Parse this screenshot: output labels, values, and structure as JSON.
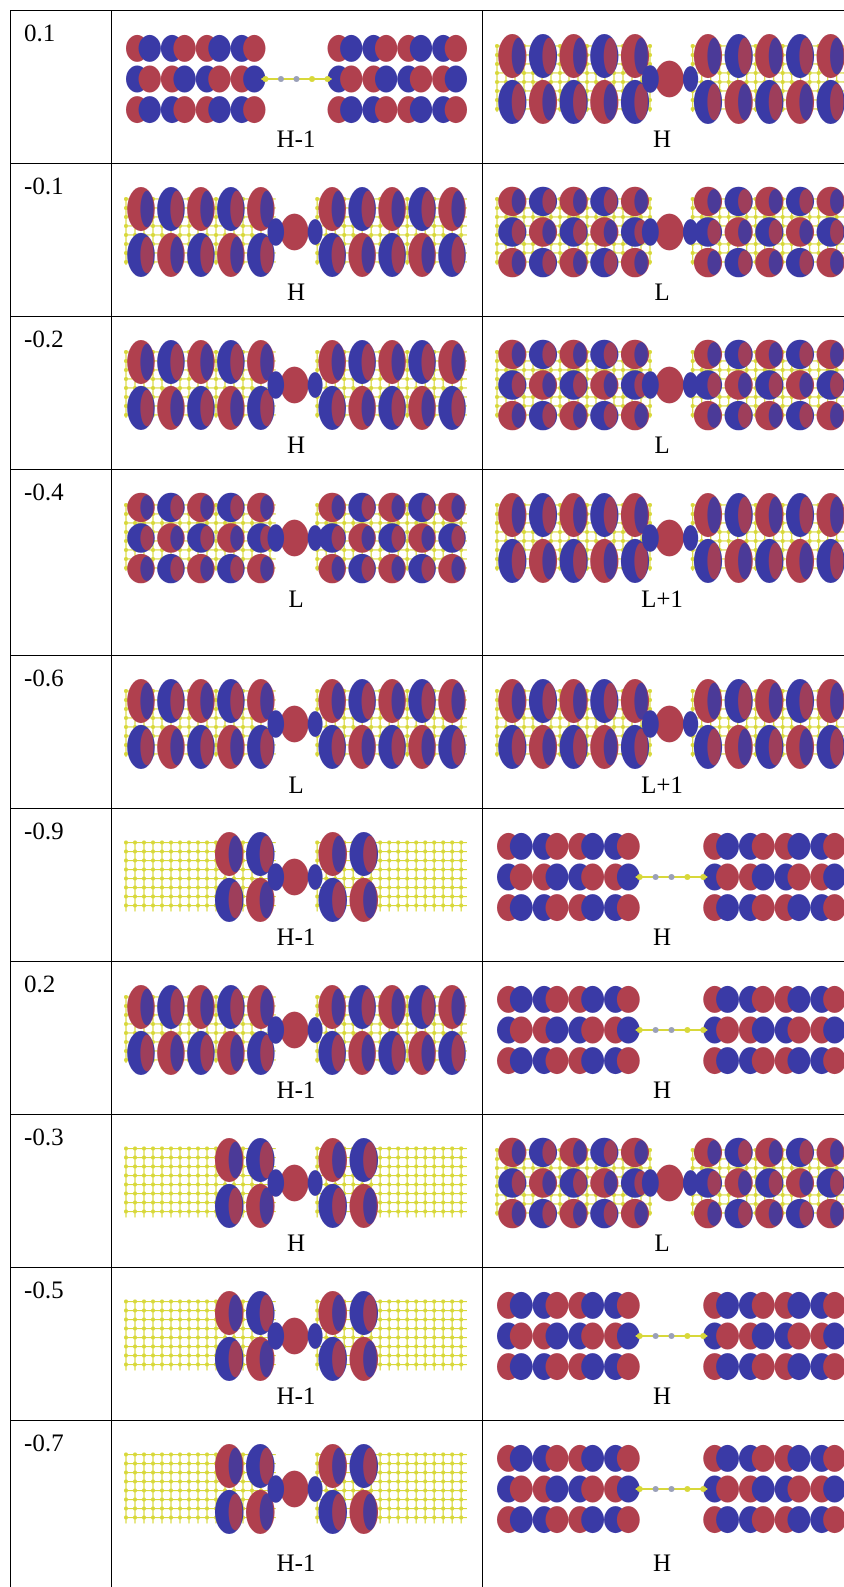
{
  "rows": [
    {
      "value": "0.1",
      "cells": [
        {
          "label": "H-1",
          "style": "px"
        },
        {
          "label": "H",
          "style": "tube"
        }
      ]
    },
    {
      "value": "-0.1",
      "cells": [
        {
          "label": "H",
          "style": "tube"
        },
        {
          "label": "L",
          "style": "lobe"
        }
      ]
    },
    {
      "value": "-0.2",
      "cells": [
        {
          "label": "H",
          "style": "tube"
        },
        {
          "label": "L",
          "style": "lobe"
        }
      ]
    },
    {
      "value": "-0.4",
      "cells": [
        {
          "label": "L",
          "style": "lobe"
        },
        {
          "label": "L+1",
          "style": "tube"
        }
      ]
    },
    {
      "value": "-0.6",
      "cells": [
        {
          "label": "L",
          "style": "tube"
        },
        {
          "label": "L+1",
          "style": "tube"
        }
      ]
    },
    {
      "value": "-0.9",
      "cells": [
        {
          "label": "H-1",
          "style": "lattice"
        },
        {
          "label": "H",
          "style": "px"
        }
      ]
    },
    {
      "value": "0.2",
      "cells": [
        {
          "label": "H-1",
          "style": "tube"
        },
        {
          "label": "H",
          "style": "px"
        }
      ]
    },
    {
      "value": "-0.3",
      "cells": [
        {
          "label": "H",
          "style": "lattice"
        },
        {
          "label": "L",
          "style": "lobe"
        }
      ]
    },
    {
      "value": "-0.5",
      "cells": [
        {
          "label": "H-1",
          "style": "lattice"
        },
        {
          "label": "H",
          "style": "px"
        }
      ]
    },
    {
      "value": "-0.7",
      "cells": [
        {
          "label": "H-1",
          "style": "lattice"
        },
        {
          "label": "H",
          "style": "px"
        }
      ]
    }
  ],
  "colors": {
    "positive": "#b0404e",
    "negative": "#3a3aa6",
    "atom": "#d8d83a",
    "nitrogen": "#9aa0b8"
  }
}
